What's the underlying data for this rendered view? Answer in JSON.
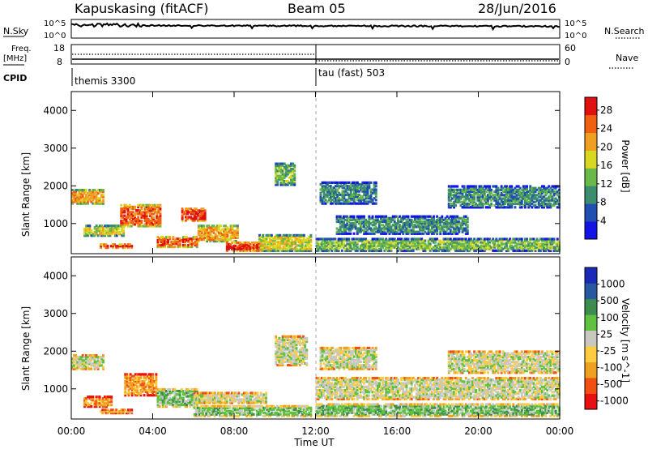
{
  "header": {
    "station": "Kapuskasing (fitACF)",
    "beam": "Beam 05",
    "date": "28/Jun/2016"
  },
  "panels": {
    "nsky_label": "N.Sky",
    "nsky_ticks": [
      "10^5",
      "10^0"
    ],
    "nsearch_label": "N.Search",
    "freq_label_1": "Freq.",
    "freq_label_2": "[MHz]",
    "freq_ticks": [
      "18",
      "8"
    ],
    "nave_ticks": [
      "60",
      "0"
    ],
    "nave_label": "Nave",
    "cpid_label": "CPID",
    "cpid_1": "themis 3300",
    "cpid_2": "tau (fast) 503"
  },
  "colors": {
    "power": [
      "#1414e6",
      "#1f4fb0",
      "#3c8c6e",
      "#6ab84a",
      "#d8d820",
      "#f0a020",
      "#f06010",
      "#e01010"
    ],
    "velocity": [
      "#e81010",
      "#f05010",
      "#f0a020",
      "#ffcc40",
      "#c8c8c0",
      "#60c040",
      "#3c8c50",
      "#2858a0",
      "#1a2ab8"
    ]
  },
  "chart_data": [
    {
      "type": "heatmap",
      "name": "power",
      "xlabel": "",
      "ylabel": "Slant Range [km]",
      "yticks": [
        "1000",
        "2000",
        "3000",
        "4000"
      ],
      "ylim": [
        200,
        4500
      ],
      "colorbar_label": "Power [dB]",
      "colorbar_ticks": [
        "4",
        "8",
        "12",
        "16",
        "20",
        "24",
        "28"
      ],
      "colorbar_range": [
        0,
        30
      ],
      "regions": [
        {
          "t0": 0.0,
          "t1": 1.6,
          "r0": 1500,
          "r1": 1900,
          "level": 5
        },
        {
          "t0": 0.6,
          "t1": 2.6,
          "r0": 650,
          "r1": 950,
          "level": 4
        },
        {
          "t0": 2.4,
          "t1": 4.4,
          "r0": 900,
          "r1": 1500,
          "level": 6
        },
        {
          "t0": 1.4,
          "t1": 3.0,
          "r0": 330,
          "r1": 450,
          "level": 7
        },
        {
          "t0": 5.4,
          "t1": 6.6,
          "r0": 1050,
          "r1": 1400,
          "level": 7
        },
        {
          "t0": 4.2,
          "t1": 6.2,
          "r0": 350,
          "r1": 650,
          "level": 6
        },
        {
          "t0": 6.2,
          "t1": 8.2,
          "r0": 500,
          "r1": 950,
          "level": 5
        },
        {
          "t0": 7.6,
          "t1": 9.4,
          "r0": 250,
          "r1": 500,
          "level": 7
        },
        {
          "t0": 9.2,
          "t1": 11.8,
          "r0": 250,
          "r1": 700,
          "level": 4
        },
        {
          "t0": 10.0,
          "t1": 11.0,
          "r0": 2000,
          "r1": 2600,
          "level": 3
        },
        {
          "t0": 12.2,
          "t1": 15.0,
          "r0": 1500,
          "r1": 2100,
          "level": 2
        },
        {
          "t0": 13.0,
          "t1": 19.5,
          "r0": 700,
          "r1": 1200,
          "level": 2
        },
        {
          "t0": 18.5,
          "t1": 24.0,
          "r0": 1400,
          "r1": 2000,
          "level": 2
        },
        {
          "t0": 12.0,
          "t1": 24.0,
          "r0": 250,
          "r1": 600,
          "level": 3
        }
      ]
    },
    {
      "type": "heatmap",
      "name": "velocity",
      "xlabel": "Time UT",
      "xticks": [
        "00:00",
        "04:00",
        "08:00",
        "12:00",
        "16:00",
        "20:00",
        "00:00"
      ],
      "ylabel": "Slant Range [km]",
      "yticks": [
        "1000",
        "2000",
        "3000",
        "4000"
      ],
      "ylim": [
        200,
        4500
      ],
      "colorbar_label": "Velocity [m s^-1]",
      "colorbar_ticks": [
        "1000",
        "500",
        "100",
        "25",
        "-25",
        "-100",
        "-500",
        "-1000"
      ],
      "regions": [
        {
          "t0": 0.0,
          "t1": 1.6,
          "r0": 1500,
          "r1": 1900,
          "level": 4
        },
        {
          "t0": 0.6,
          "t1": 2.0,
          "r0": 500,
          "r1": 800,
          "level": 2
        },
        {
          "t0": 2.6,
          "t1": 4.2,
          "r0": 800,
          "r1": 1400,
          "level": 2
        },
        {
          "t0": 1.4,
          "t1": 3.0,
          "r0": 330,
          "r1": 450,
          "level": 3
        },
        {
          "t0": 4.2,
          "t1": 6.2,
          "r0": 500,
          "r1": 1000,
          "level": 5
        },
        {
          "t0": 6.0,
          "t1": 9.6,
          "r0": 600,
          "r1": 900,
          "level": 4
        },
        {
          "t0": 6.0,
          "t1": 11.8,
          "r0": 250,
          "r1": 550,
          "level": 5
        },
        {
          "t0": 10.0,
          "t1": 11.6,
          "r0": 1600,
          "r1": 2400,
          "level": 4
        },
        {
          "t0": 12.2,
          "t1": 15.0,
          "r0": 1500,
          "r1": 2100,
          "level": 4
        },
        {
          "t0": 12.0,
          "t1": 24.0,
          "r0": 700,
          "r1": 1300,
          "level": 4
        },
        {
          "t0": 18.5,
          "t1": 24.0,
          "r0": 1400,
          "r1": 2000,
          "level": 4
        },
        {
          "t0": 12.0,
          "t1": 24.0,
          "r0": 250,
          "r1": 600,
          "level": 5
        }
      ]
    }
  ]
}
